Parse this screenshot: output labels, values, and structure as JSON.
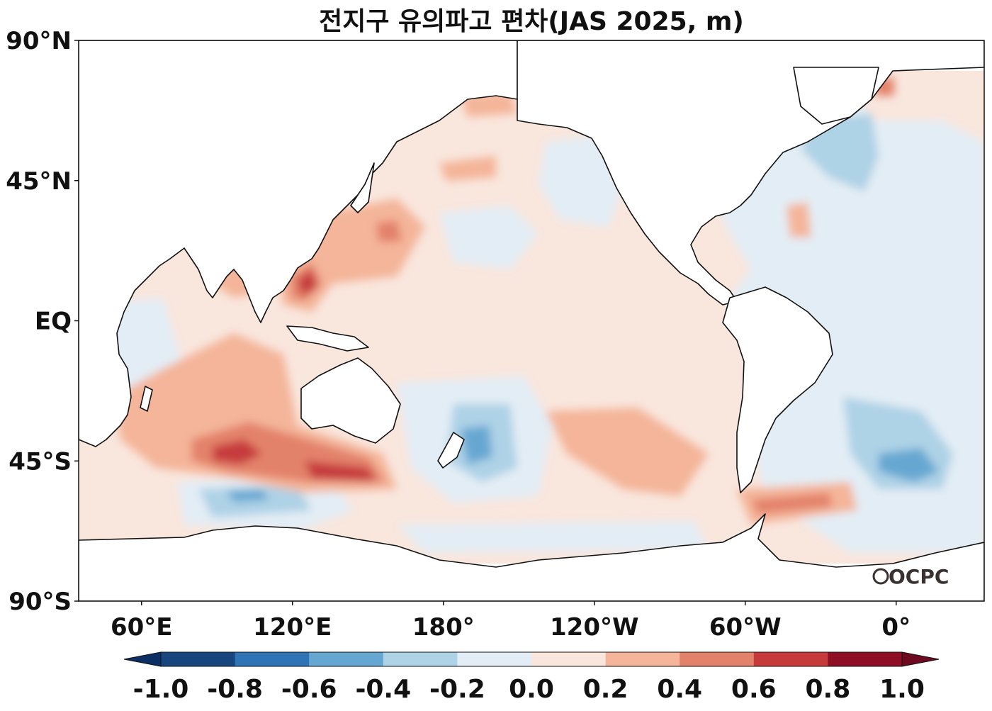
{
  "title": "전지구 유의파고 편차(JAS 2025, m)",
  "logo": "OCPC",
  "map": {
    "lon_range": [
      35,
      395
    ],
    "lat_range": [
      -90,
      90
    ],
    "lat_ticks": [
      {
        "value": 90,
        "label": "90°N"
      },
      {
        "value": 45,
        "label": "45°N"
      },
      {
        "value": 0,
        "label": "EQ"
      },
      {
        "value": -45,
        "label": "45°S"
      },
      {
        "value": -90,
        "label": "90°S"
      }
    ],
    "lon_ticks": [
      {
        "value": 60,
        "label": "60°E"
      },
      {
        "value": 120,
        "label": "120°E"
      },
      {
        "value": 180,
        "label": "180°"
      },
      {
        "value": 240,
        "label": "120°W"
      },
      {
        "value": 300,
        "label": "60°W"
      },
      {
        "value": 360,
        "label": "0°"
      }
    ]
  },
  "colorbar": {
    "levels": [
      -1.0,
      -0.8,
      -0.6,
      -0.4,
      -0.2,
      0.0,
      0.2,
      0.4,
      0.6,
      0.8,
      1.0
    ],
    "labels": [
      "-1.0",
      "-0.8",
      "-0.6",
      "-0.4",
      "-0.2",
      "0.0",
      "0.2",
      "0.4",
      "0.6",
      "0.8",
      "1.0"
    ],
    "colors": [
      "#17467f",
      "#2f75b6",
      "#66a7d2",
      "#aed2e6",
      "#e3edf5",
      "#f9e6dd",
      "#f4b59a",
      "#e3826b",
      "#c63a3c",
      "#8e0e26"
    ],
    "under_color": "#0c2f63",
    "over_color": "#6d0a1f"
  }
}
